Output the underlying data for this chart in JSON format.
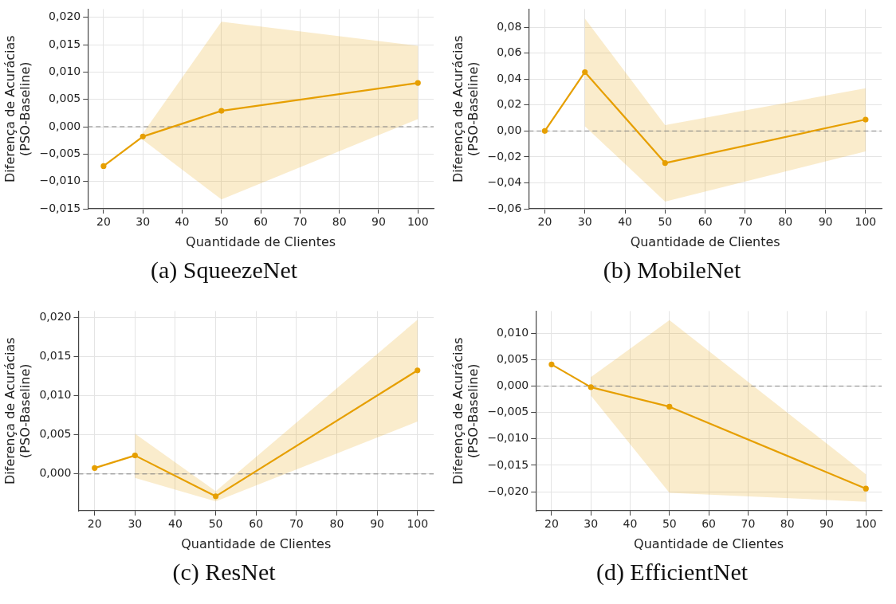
{
  "chart_data": [
    {
      "type": "line",
      "xlabel": "Quantidade de Clientes",
      "ylabel": "Diferença de Acurácias\n(PSO-Baseline)",
      "annotations": [
        "(a) SqueezeNet"
      ],
      "x": [
        20,
        30,
        50,
        100
      ],
      "series": [
        {
          "color": "#e69f00",
          "values": [
            -0.0072,
            -0.0018,
            0.0029,
            0.008
          ],
          "lower": [
            null,
            -0.0024,
            -0.0133,
            0.0014
          ],
          "upper": [
            null,
            -0.0012,
            0.0192,
            0.0148
          ]
        }
      ],
      "xlim": [
        16,
        104
      ],
      "xticks": [
        20,
        30,
        40,
        50,
        60,
        70,
        80,
        90,
        100
      ],
      "ylim": [
        -0.015,
        0.0215
      ],
      "yticks": [
        {
          "value": -0.015,
          "label": "−0,015"
        },
        {
          "value": -0.01,
          "label": "−0,010"
        },
        {
          "value": -0.005,
          "label": "−0,005"
        },
        {
          "value": 0,
          "label": "0,000"
        },
        {
          "value": 0.005,
          "label": "0,005"
        },
        {
          "value": 0.01,
          "label": "0,010"
        },
        {
          "value": 0.015,
          "label": "0,015"
        },
        {
          "value": 0.02,
          "label": "0,020"
        }
      ],
      "ref_lines": [
        {
          "axis": "y",
          "value": 0,
          "color": "#808080",
          "line_style": "dashed"
        }
      ],
      "grid": true,
      "marker": "circle",
      "line_style": "solid"
    },
    {
      "type": "line",
      "xlabel": "Quantidade de Clientes",
      "ylabel": "Diferença de Acurácias\n(PSO-Baseline)",
      "annotations": [
        "(b) MobileNet"
      ],
      "x": [
        20,
        30,
        50,
        100
      ],
      "series": [
        {
          "color": "#e69f00",
          "values": [
            0.0,
            0.0454,
            -0.0247,
            0.0088
          ],
          "lower": [
            null,
            0.0036,
            -0.0545,
            -0.0157
          ],
          "upper": [
            null,
            0.0867,
            0.0046,
            0.0329
          ]
        }
      ],
      "xlim": [
        16,
        104
      ],
      "xticks": [
        20,
        30,
        40,
        50,
        60,
        70,
        80,
        90,
        100
      ],
      "ylim": [
        -0.06,
        0.094
      ],
      "yticks": [
        {
          "value": -0.06,
          "label": "−0,06"
        },
        {
          "value": -0.04,
          "label": "−0,04"
        },
        {
          "value": -0.02,
          "label": "−0,02"
        },
        {
          "value": 0,
          "label": "0,00"
        },
        {
          "value": 0.02,
          "label": "0,02"
        },
        {
          "value": 0.04,
          "label": "0,04"
        },
        {
          "value": 0.06,
          "label": "0,06"
        },
        {
          "value": 0.08,
          "label": "0,08"
        }
      ],
      "ref_lines": [
        {
          "axis": "y",
          "value": 0,
          "color": "#808080",
          "line_style": "dashed"
        }
      ],
      "grid": true,
      "marker": "circle",
      "line_style": "solid"
    },
    {
      "type": "line",
      "xlabel": "Quantidade de Clientes",
      "ylabel": "Diferença de Acurácias\n(PSO-Baseline)",
      "annotations": [
        "(c) ResNet"
      ],
      "x": [
        20,
        30,
        50,
        100
      ],
      "series": [
        {
          "color": "#e69f00",
          "values": [
            0.00076,
            0.00236,
            -0.00285,
            0.01323
          ],
          "lower": [
            null,
            -0.0005,
            -0.0035,
            0.0067
          ],
          "upper": [
            null,
            0.00514,
            -0.0022,
            0.0197
          ]
        }
      ],
      "xlim": [
        16,
        104
      ],
      "xticks": [
        20,
        30,
        40,
        50,
        60,
        70,
        80,
        90,
        100
      ],
      "ylim": [
        -0.0047,
        0.0208
      ],
      "yticks": [
        {
          "value": 0,
          "label": "0,000"
        },
        {
          "value": 0.005,
          "label": "0,005"
        },
        {
          "value": 0.01,
          "label": "0,010"
        },
        {
          "value": 0.015,
          "label": "0,015"
        },
        {
          "value": 0.02,
          "label": "0,020"
        }
      ],
      "ref_lines": [
        {
          "axis": "y",
          "value": 0,
          "color": "#808080",
          "line_style": "dashed"
        }
      ],
      "grid": true,
      "marker": "circle",
      "line_style": "solid"
    },
    {
      "type": "line",
      "xlabel": "Quantidade de Clientes",
      "ylabel": "Diferença de Acurácias\n(PSO-Baseline)",
      "annotations": [
        "(d) EfficientNet"
      ],
      "x": [
        20,
        30,
        50,
        100
      ],
      "series": [
        {
          "color": "#e69f00",
          "values": [
            0.0041,
            -0.0002,
            -0.0039,
            -0.0194
          ],
          "lower": [
            null,
            -0.0018,
            -0.0202,
            -0.0219
          ],
          "upper": [
            null,
            0.0017,
            0.0125,
            -0.0167
          ]
        }
      ],
      "xlim": [
        16,
        104
      ],
      "xticks": [
        20,
        30,
        40,
        50,
        60,
        70,
        80,
        90,
        100
      ],
      "ylim": [
        -0.0236,
        0.0142
      ],
      "yticks": [
        {
          "value": -0.02,
          "label": "−0,020"
        },
        {
          "value": -0.015,
          "label": "−0,015"
        },
        {
          "value": -0.01,
          "label": "−0,010"
        },
        {
          "value": -0.005,
          "label": "−0,005"
        },
        {
          "value": 0,
          "label": "0,000"
        },
        {
          "value": 0.005,
          "label": "0,005"
        },
        {
          "value": 0.01,
          "label": "0,010"
        }
      ],
      "ref_lines": [
        {
          "axis": "y",
          "value": 0,
          "color": "#808080",
          "line_style": "dashed"
        }
      ],
      "grid": true,
      "marker": "circle",
      "line_style": "solid"
    }
  ]
}
